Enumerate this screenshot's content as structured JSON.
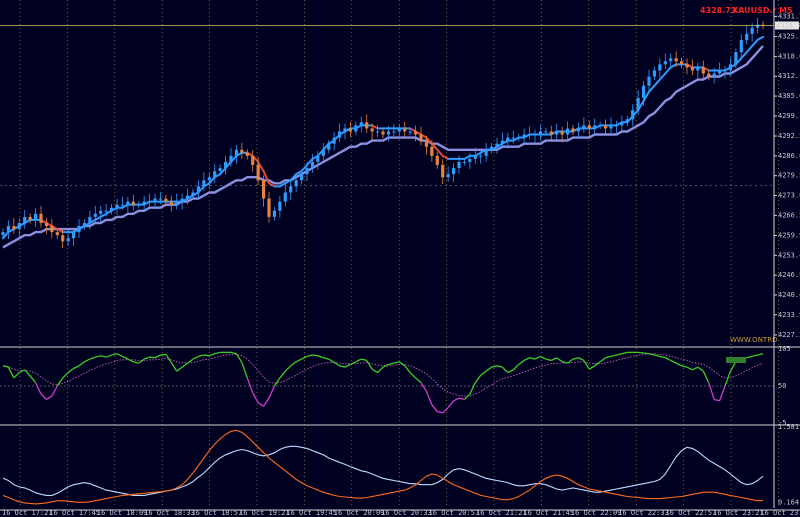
{
  "header": {
    "price": "4328.73",
    "symbol": "XAUUSD.r",
    "timeframe": "M5"
  },
  "watermark": "WWW.ONTRD",
  "colors": {
    "background": "#000020",
    "grid": "#b8a04a",
    "bull": "#2e9bff",
    "bear": "#e8843a",
    "ma_slow": "#8a90e0",
    "ma_fast_up": "#2e9bff",
    "ma_fast_down": "#e34a3a",
    "price_line": "#d8c65a",
    "osc_up": "#3cd021",
    "osc_down": "#d23ad2",
    "osc_signal": "#e06ec8",
    "sub2_a": "#b9dcff",
    "sub2_b": "#ff6a1a",
    "badge": "#2f7f2f"
  },
  "chart_data": [
    {
      "type": "candlestick",
      "panel": "main",
      "symbol": "XAUUSD.r",
      "timeframe": "M5",
      "last_price": 4328.73,
      "ylim": [
        4224.0,
        4332.5
      ],
      "y_ticks": [
        "4331.70",
        "4325.10",
        "4318.60",
        "4312.10",
        "4305.60",
        "4299.10",
        "4292.50",
        "4286.00",
        "4279.50",
        "4273.00",
        "4266.50",
        "4259.90",
        "4253.40",
        "4246.90",
        "4240.40",
        "4233.90",
        "4227.30"
      ],
      "x_ticks": [
        "16 Oct 17:21",
        "16 Oct 17:45",
        "16 Oct 18:09",
        "16 Oct 18:33",
        "16 Oct 18:57",
        "16 Oct 19:21",
        "16 Oct 19:45",
        "16 Oct 20:09",
        "16 Oct 20:33",
        "16 Oct 20:57",
        "16 Oct 21:21",
        "16 Oct 21:45",
        "16 Oct 22:09",
        "16 Oct 22:33",
        "16 Oct 22:57",
        "16 Oct 23:21",
        "16 Oct 23:45"
      ],
      "x_index_range": [
        0,
        160
      ],
      "close": [
        4261,
        4263,
        4262,
        4264,
        4266,
        4265,
        4267,
        4264,
        4263,
        4261,
        4260,
        4258,
        4259,
        4261,
        4263,
        4264,
        4266,
        4267,
        4268,
        4268,
        4269,
        4270,
        4270,
        4271,
        4270,
        4270,
        4271,
        4271,
        4272,
        4272,
        4271,
        4270,
        4271,
        4272,
        4273,
        4274,
        4276,
        4278,
        4279,
        4281,
        4282,
        4284,
        4286,
        4288,
        4287,
        4286,
        4283,
        4278,
        4272,
        4266,
        4268,
        4271,
        4274,
        4276,
        4278,
        4280,
        4282,
        4284,
        4286,
        4288,
        4290,
        4292,
        4294,
        4295,
        4294,
        4296,
        4297,
        4295,
        4294,
        4294,
        4293,
        4294,
        4294,
        4295,
        4294,
        4294,
        4293,
        4291,
        4289,
        4286,
        4283,
        4279,
        4280,
        4282,
        4284,
        4284,
        4285,
        4286,
        4286,
        4288,
        4289,
        4290,
        4291,
        4292,
        4292,
        4292,
        4293,
        4293,
        4293,
        4294,
        4294,
        4293,
        4294,
        4293,
        4295,
        4294,
        4295,
        4296,
        4295,
        4296,
        4296,
        4295,
        4296,
        4296,
        4297,
        4298,
        4301,
        4305,
        4309,
        4312,
        4314,
        4316,
        4317,
        4318,
        4317,
        4316,
        4315,
        4314,
        4315,
        4313,
        4312,
        4313,
        4314,
        4314,
        4316,
        4320,
        4324,
        4326,
        4328,
        4329,
        4328.7
      ],
      "ma_slow": [
        4256,
        4257,
        4258,
        4259,
        4260,
        4260,
        4261,
        4261,
        4262,
        4262,
        4262,
        4262,
        4262,
        4262,
        4262,
        4263,
        4263,
        4264,
        4264,
        4265,
        4265,
        4266,
        4266,
        4267,
        4267,
        4268,
        4268,
        4269,
        4269,
        4269,
        4270,
        4270,
        4270,
        4271,
        4271,
        4272,
        4272,
        4273,
        4274,
        4274,
        4275,
        4276,
        4277,
        4278,
        4278,
        4279,
        4279,
        4279,
        4278,
        4278,
        4277,
        4277,
        4278,
        4278,
        4279,
        4280,
        4281,
        4282,
        4283,
        4284,
        4285,
        4286,
        4287,
        4288,
        4289,
        4289,
        4290,
        4290,
        4291,
        4291,
        4291,
        4292,
        4292,
        4292,
        4292,
        4292,
        4292,
        4291,
        4291,
        4290,
        4290,
        4289,
        4288,
        4288,
        4288,
        4288,
        4288,
        4288,
        4288,
        4288,
        4288,
        4288,
        4289,
        4289,
        4289,
        4289,
        4290,
        4290,
        4290,
        4290,
        4291,
        4291,
        4291,
        4291,
        4291,
        4292,
        4292,
        4292,
        4292,
        4293,
        4293,
        4293,
        4293,
        4293,
        4294,
        4294,
        4295,
        4296,
        4297,
        4299,
        4300,
        4302,
        4304,
        4305,
        4307,
        4308,
        4309,
        4310,
        4311,
        4311,
        4312,
        4312,
        4312,
        4313,
        4313,
        4314,
        4315,
        4316,
        4318,
        4320,
        4322
      ],
      "ma_fast": [
        4259,
        4261,
        4262,
        4263,
        4264,
        4265,
        4265,
        4265,
        4264,
        4263,
        4262,
        4261,
        4261,
        4261,
        4262,
        4263,
        4264,
        4265,
        4266,
        4267,
        4268,
        4269,
        4269,
        4270,
        4270,
        4270,
        4270,
        4271,
        4271,
        4271,
        4271,
        4271,
        4271,
        4271,
        4272,
        4273,
        4274,
        4276,
        4277,
        4279,
        4280,
        4282,
        4284,
        4286,
        4287,
        4287,
        4286,
        4284,
        4281,
        4277,
        4276,
        4276,
        4277,
        4278,
        4280,
        4281,
        4283,
        4285,
        4286,
        4288,
        4290,
        4291,
        4293,
        4294,
        4295,
        4295,
        4296,
        4296,
        4296,
        4295,
        4295,
        4295,
        4295,
        4295,
        4295,
        4295,
        4294,
        4293,
        4292,
        4290,
        4288,
        4286,
        4285,
        4285,
        4285,
        4285,
        4286,
        4286,
        4287,
        4288,
        4288,
        4289,
        4290,
        4291,
        4291,
        4292,
        4292,
        4293,
        4293,
        4293,
        4293,
        4293,
        4294,
        4294,
        4294,
        4294,
        4295,
        4295,
        4295,
        4295,
        4296,
        4296,
        4296,
        4296,
        4297,
        4297,
        4299,
        4301,
        4304,
        4307,
        4309,
        4311,
        4313,
        4315,
        4316,
        4316,
        4316,
        4315,
        4315,
        4315,
        4314,
        4314,
        4314,
        4314,
        4315,
        4316,
        4318,
        4320,
        4322,
        4324,
        4325
      ]
    },
    {
      "type": "line",
      "panel": "oscillator",
      "ylim": [
        -5,
        105
      ],
      "y_ticks": [
        "105",
        "50",
        "-5"
      ],
      "levels": [
        50
      ],
      "series": [
        {
          "values": [
            80,
            78,
            62,
            70,
            74,
            65,
            55,
            38,
            30,
            35,
            50,
            62,
            70,
            76,
            80,
            86,
            90,
            93,
            95,
            93,
            96,
            98,
            94,
            90,
            86,
            84,
            90,
            93,
            92,
            96,
            97,
            85,
            72,
            78,
            84,
            90,
            94,
            96,
            95,
            98,
            100,
            100,
            100,
            98,
            85,
            62,
            40,
            25,
            20,
            32,
            50,
            62,
            72,
            80,
            86,
            90,
            94,
            96,
            95,
            92,
            90,
            85,
            80,
            78,
            82,
            86,
            90,
            88,
            75,
            70,
            78,
            82,
            84,
            86,
            80,
            70,
            62,
            55,
            42,
            22,
            12,
            10,
            18,
            28,
            32,
            30,
            38,
            55,
            66,
            72,
            78,
            80,
            78,
            70,
            74,
            82,
            88,
            92,
            90,
            94,
            90,
            88,
            92,
            86,
            84,
            90,
            92,
            88,
            75,
            80,
            86,
            92,
            94,
            96,
            98,
            100,
            100,
            100,
            99,
            98,
            96,
            94,
            92,
            88,
            84,
            80,
            78,
            74,
            78,
            72,
            55,
            30,
            28,
            50,
            72,
            86,
            90,
            92,
            94,
            96,
            98
          ]
        },
        {
          "values": [
            80,
            79,
            75,
            73,
            73,
            72,
            69,
            64,
            58,
            53,
            52,
            54,
            57,
            61,
            65,
            69,
            73,
            77,
            80,
            83,
            85,
            88,
            89,
            89,
            89,
            88,
            88,
            89,
            89,
            90,
            91,
            89,
            86,
            85,
            84,
            85,
            87,
            89,
            90,
            92,
            94,
            96,
            97,
            97,
            95,
            90,
            82,
            73,
            63,
            56,
            54,
            55,
            58,
            62,
            66,
            71,
            75,
            79,
            82,
            84,
            85,
            85,
            84,
            83,
            83,
            83,
            84,
            85,
            83,
            81,
            80,
            80,
            81,
            82,
            82,
            80,
            77,
            73,
            68,
            61,
            53,
            46,
            41,
            38,
            36,
            35,
            35,
            38,
            42,
            47,
            52,
            57,
            61,
            63,
            65,
            68,
            71,
            74,
            77,
            79,
            81,
            83,
            84,
            84,
            84,
            85,
            86,
            86,
            84,
            83,
            83,
            84,
            86,
            88,
            90,
            92,
            94,
            96,
            97,
            98,
            98,
            97,
            96,
            94,
            92,
            90,
            88,
            85,
            84,
            82,
            78,
            72,
            66,
            62,
            62,
            65,
            69,
            73,
            77,
            81,
            84
          ]
        }
      ],
      "badge": ""
    },
    {
      "type": "line",
      "panel": "sub2",
      "ylim": [
        0.064,
        1.5811
      ],
      "y_ticks": [
        "1.5811",
        "0.164"
      ],
      "series": [
        {
          "values": [
            0.62,
            0.58,
            0.5,
            0.46,
            0.44,
            0.4,
            0.35,
            0.32,
            0.3,
            0.3,
            0.34,
            0.4,
            0.46,
            0.5,
            0.52,
            0.54,
            0.52,
            0.48,
            0.44,
            0.4,
            0.38,
            0.36,
            0.34,
            0.32,
            0.3,
            0.3,
            0.3,
            0.32,
            0.34,
            0.36,
            0.38,
            0.4,
            0.42,
            0.46,
            0.5,
            0.56,
            0.64,
            0.72,
            0.82,
            0.92,
            1.0,
            1.06,
            1.1,
            1.14,
            1.16,
            1.14,
            1.1,
            1.06,
            1.04,
            1.06,
            1.1,
            1.16,
            1.2,
            1.22,
            1.22,
            1.2,
            1.18,
            1.14,
            1.1,
            1.06,
            1.0,
            0.96,
            0.92,
            0.88,
            0.84,
            0.8,
            0.76,
            0.74,
            0.7,
            0.66,
            0.62,
            0.6,
            0.58,
            0.56,
            0.54,
            0.52,
            0.52,
            0.5,
            0.5,
            0.5,
            0.54,
            0.6,
            0.7,
            0.78,
            0.8,
            0.78,
            0.74,
            0.7,
            0.66,
            0.62,
            0.6,
            0.58,
            0.56,
            0.54,
            0.5,
            0.48,
            0.48,
            0.5,
            0.52,
            0.52,
            0.5,
            0.46,
            0.42,
            0.4,
            0.42,
            0.44,
            0.42,
            0.4,
            0.38,
            0.36,
            0.36,
            0.38,
            0.4,
            0.42,
            0.44,
            0.46,
            0.48,
            0.5,
            0.52,
            0.54,
            0.56,
            0.6,
            0.7,
            0.86,
            1.02,
            1.14,
            1.2,
            1.18,
            1.12,
            1.04,
            0.96,
            0.9,
            0.84,
            0.78,
            0.7,
            0.62,
            0.54,
            0.5,
            0.52,
            0.58,
            0.66
          ]
        },
        {
          "values": [
            0.3,
            0.26,
            0.22,
            0.18,
            0.16,
            0.15,
            0.14,
            0.15,
            0.16,
            0.18,
            0.2,
            0.2,
            0.19,
            0.18,
            0.17,
            0.17,
            0.18,
            0.2,
            0.22,
            0.24,
            0.26,
            0.28,
            0.3,
            0.31,
            0.32,
            0.33,
            0.34,
            0.35,
            0.36,
            0.37,
            0.38,
            0.4,
            0.44,
            0.5,
            0.6,
            0.72,
            0.86,
            1.0,
            1.14,
            1.26,
            1.36,
            1.44,
            1.5,
            1.52,
            1.48,
            1.4,
            1.3,
            1.2,
            1.1,
            1.0,
            0.92,
            0.84,
            0.76,
            0.68,
            0.6,
            0.54,
            0.48,
            0.44,
            0.4,
            0.36,
            0.33,
            0.3,
            0.28,
            0.27,
            0.26,
            0.25,
            0.25,
            0.26,
            0.28,
            0.3,
            0.32,
            0.34,
            0.36,
            0.38,
            0.4,
            0.44,
            0.5,
            0.58,
            0.66,
            0.7,
            0.68,
            0.62,
            0.56,
            0.5,
            0.46,
            0.42,
            0.38,
            0.34,
            0.3,
            0.28,
            0.26,
            0.24,
            0.22,
            0.22,
            0.24,
            0.28,
            0.34,
            0.4,
            0.48,
            0.56,
            0.62,
            0.66,
            0.68,
            0.66,
            0.62,
            0.56,
            0.5,
            0.46,
            0.42,
            0.4,
            0.38,
            0.36,
            0.34,
            0.32,
            0.3,
            0.28,
            0.27,
            0.26,
            0.25,
            0.24,
            0.24,
            0.24,
            0.25,
            0.26,
            0.27,
            0.28,
            0.3,
            0.32,
            0.34,
            0.36,
            0.36,
            0.36,
            0.34,
            0.32,
            0.3,
            0.28,
            0.26,
            0.24,
            0.22,
            0.2,
            0.2
          ]
        }
      ]
    }
  ]
}
